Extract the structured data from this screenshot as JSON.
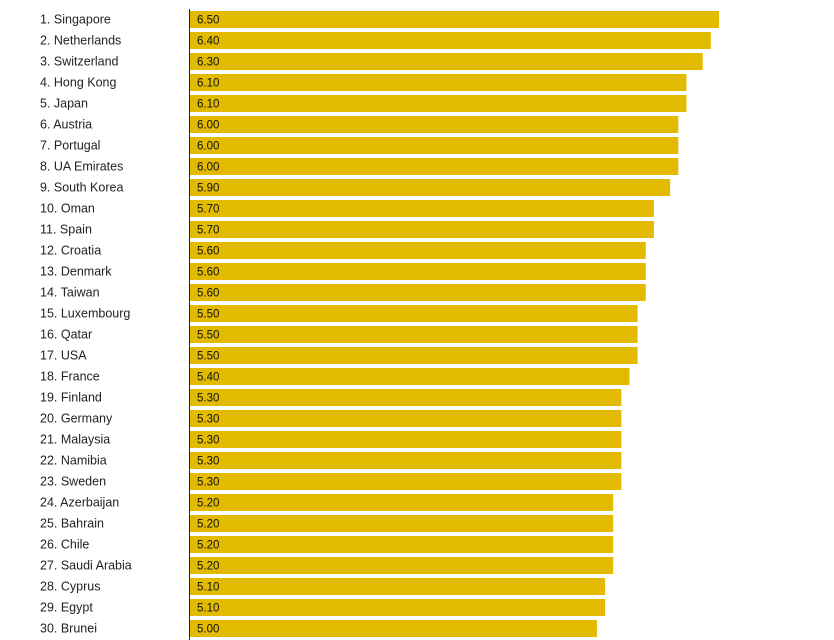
{
  "chart_data": {
    "type": "bar",
    "orientation": "horizontal",
    "bar_color": "#e2bb00",
    "axis_color": "#222222",
    "categories": [
      "1. Singapore",
      "2. Netherlands",
      "3. Switzerland",
      "4. Hong Kong",
      "5. Japan",
      "6. Austria",
      "7. Portugal",
      "8. UA Emirates",
      "9. South Korea",
      "10. Oman",
      "11. Spain",
      "12. Croatia",
      "13. Denmark",
      "14. Taiwan",
      "15. Luxembourg",
      "16. Qatar",
      "17. USA",
      "18. France",
      "19. Finland",
      "20. Germany",
      "21. Malaysia",
      "22. Namibia",
      "23. Sweden",
      "24. Azerbaijan",
      "25. Bahrain",
      "26. Chile",
      "27. Saudi Arabia",
      "28. Cyprus",
      "29. Egypt",
      "30. Brunei"
    ],
    "values": [
      6.5,
      6.4,
      6.3,
      6.1,
      6.1,
      6.0,
      6.0,
      6.0,
      5.9,
      5.7,
      5.7,
      5.6,
      5.6,
      5.6,
      5.5,
      5.5,
      5.5,
      5.4,
      5.3,
      5.3,
      5.3,
      5.3,
      5.3,
      5.2,
      5.2,
      5.2,
      5.2,
      5.1,
      5.1,
      5.0
    ],
    "value_labels": [
      "6.50",
      "6.40",
      "6.30",
      "6.10",
      "6.10",
      "6.00",
      "6.00",
      "6.00",
      "5.90",
      "5.70",
      "5.70",
      "5.60",
      "5.60",
      "5.60",
      "5.50",
      "5.50",
      "5.50",
      "5.40",
      "5.30",
      "5.30",
      "5.30",
      "5.30",
      "5.30",
      "5.20",
      "5.20",
      "5.20",
      "5.20",
      "5.10",
      "5.10",
      "5.00"
    ],
    "xlim": [
      0,
      6.5
    ],
    "grid": false,
    "legend": "none"
  }
}
